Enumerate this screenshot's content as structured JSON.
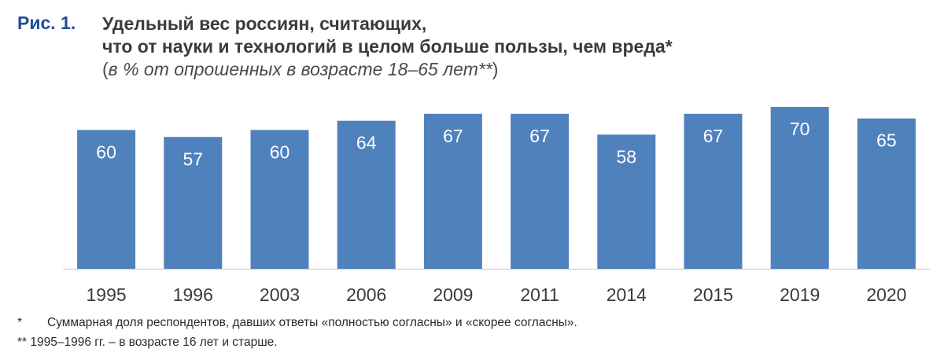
{
  "figure": {
    "label": "Рис. 1.",
    "title_line1": "Удельный вес россиян, считающих,",
    "title_line2": "что от науки и технологий в целом больше пользы, чем вреда*",
    "subtitle_open": "(",
    "subtitle_text": "в % от опрошенных в возрасте 18–65 лет**",
    "subtitle_close": ")"
  },
  "chart_data": {
    "type": "bar",
    "title": "Удельный вес россиян, считающих, что от науки и технологий в целом больше пользы, чем вреда*",
    "subtitle": "в % от опрошенных в возрасте 18–65 лет**",
    "categories": [
      "1995",
      "1996",
      "2003",
      "2006",
      "2009",
      "2011",
      "2014",
      "2015",
      "2019",
      "2020"
    ],
    "values": [
      60,
      57,
      60,
      64,
      67,
      67,
      58,
      67,
      70,
      65
    ],
    "xlabel": "",
    "ylabel": "",
    "ylim": [
      0,
      70
    ],
    "grid": false,
    "legend": "none",
    "bar_color": "#4f81bd",
    "label_color": "#ffffff",
    "axis_color": "#c8c8c8"
  },
  "footnotes": {
    "note1_mark": "*",
    "note1_text": "Суммарная доля респондентов, давших ответы «полностью согласны» и «скорее согласны».",
    "note2": "** 1995–1996 гг. – в возрасте 16 лет и старше."
  }
}
